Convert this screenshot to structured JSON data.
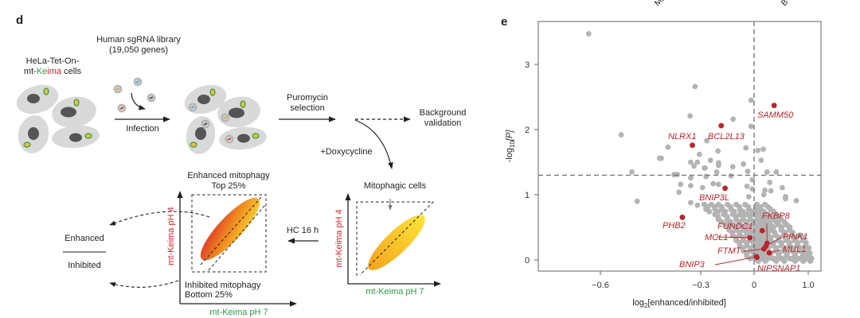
{
  "panel_d": {
    "label": "d",
    "library_title": "Human sgRNA library",
    "library_genes": "(19,050 genes)",
    "cell_line_1": "HeLa-Tet-On-",
    "cell_line_2_prefix": "mt-",
    "cell_line_2_ke": "Ke",
    "cell_line_2_ima": "ima",
    "cell_line_2_suffix": " cells",
    "infection": "Infection",
    "puromycin_1": "Puromycin",
    "puromycin_2": "selection",
    "background_1": "Background",
    "background_2": "validation",
    "doxycycline": "+Doxycycline",
    "mitophagic_cells": "Mitophagic cells",
    "hc": "HC 16 h",
    "enhanced_mitophagy": "Enhanced mitophagy",
    "top": "Top 25%",
    "inhibited_mitophagy": "Inhibited mitophagy",
    "bottom": "Bottom 25%",
    "y_axis": "mt-Keima pH 4",
    "x_axis": "mt-Keima pH 7",
    "ratio_numerator": "Enhanced",
    "ratio_denominator": "Inhibited",
    "colors": {
      "green": "#2e9a47",
      "red": "#d6202b",
      "cell": "#d9d9d9",
      "nucleus": "#555555"
    }
  },
  "top_cut_labels": [
    "Mo",
    "B"
  ],
  "chart_data": {
    "type": "scatter",
    "panel_label": "e",
    "xlabel_prefix": "log",
    "xlabel_sub": "2",
    "xlabel_suffix": "[enhanced/inhibited]",
    "ylabel_prefix": "-log",
    "ylabel_sub": "10",
    "ylabel_suffix": "[P]",
    "x_ticks": [
      {
        "value": -0.6,
        "label": "−0.6"
      },
      {
        "value": -0.3,
        "label": "−0.3"
      },
      {
        "value": 0,
        "label": "0"
      },
      {
        "value": 1.0,
        "label": "1.0"
      }
    ],
    "y_ticks": [
      {
        "value": 0,
        "label": "0"
      },
      {
        "value": 1,
        "label": "1"
      },
      {
        "value": 2,
        "label": "2"
      },
      {
        "value": 3,
        "label": "3"
      }
    ],
    "x_scale_note": "axis is compressed on positive side",
    "ylim": [
      -0.05,
      3.6
    ],
    "threshold_y": 1.3,
    "threshold_x": 0,
    "colors": {
      "background_points": "#b3b3b3",
      "highlight": "#b8252b"
    },
    "highlighted": [
      {
        "gene": "SAMM50",
        "x": 0.37,
        "y": 2.37
      },
      {
        "gene": "BCL2L13",
        "x": -0.185,
        "y": 2.06
      },
      {
        "gene": "NLRX1",
        "x": -0.325,
        "y": 1.76
      },
      {
        "gene": "BNIP3L",
        "x": -0.163,
        "y": 1.1
      },
      {
        "gene": "PHB2",
        "x": -0.355,
        "y": 0.655
      },
      {
        "gene": "FUNDC1",
        "x": 0.15,
        "y": 0.45
      },
      {
        "gene": "MCL1",
        "x": -0.024,
        "y": 0.34
      },
      {
        "gene": "FKBP8",
        "x": 0.24,
        "y": 0.256
      },
      {
        "gene": "PINK1",
        "x": 0.22,
        "y": 0.21
      },
      {
        "gene": "FTMT",
        "x": 0.18,
        "y": 0.17
      },
      {
        "gene": "MUL1",
        "x": 0.28,
        "y": 0.11
      },
      {
        "gene": "BNIP3",
        "x": 0.044,
        "y": 0.05
      },
      {
        "gene": "NIPSNAP1",
        "x": 0.053,
        "y": 0.04
      }
    ],
    "other_points": [
      [
        -0.635,
        3.47
      ],
      [
        -0.317,
        2.66
      ],
      [
        -0.017,
        2.45
      ],
      [
        -0.332,
        2.21
      ],
      [
        -0.118,
        2.16
      ],
      [
        -0.538,
        1.92
      ],
      [
        -0.017,
        2.05
      ],
      [
        -0.266,
        1.83
      ],
      [
        -0.398,
        1.73
      ],
      [
        -0.046,
        1.72
      ],
      [
        0.07,
        1.68
      ],
      [
        0.17,
        1.7
      ],
      [
        -0.203,
        1.67
      ],
      [
        -0.304,
        1.62
      ],
      [
        -0.423,
        1.56
      ],
      [
        -0.418,
        1.56
      ],
      [
        -0.33,
        1.5
      ],
      [
        -0.31,
        1.5
      ],
      [
        -0.32,
        1.44
      ],
      [
        -0.245,
        1.53
      ],
      [
        -0.2,
        1.49
      ],
      [
        -0.2,
        1.45
      ],
      [
        -0.06,
        1.47
      ],
      [
        0.13,
        1.53
      ],
      [
        -0.12,
        1.43
      ],
      [
        -0.28,
        1.41
      ],
      [
        -0.275,
        1.41
      ],
      [
        -0.506,
        1.35
      ],
      [
        -0.21,
        1.35
      ],
      [
        -0.036,
        1.36
      ],
      [
        0.24,
        1.35
      ],
      [
        0.41,
        1.35
      ],
      [
        -0.38,
        1.31
      ],
      [
        -0.37,
        1.31
      ],
      [
        -0.33,
        1.26
      ],
      [
        -0.27,
        1.28
      ],
      [
        -0.13,
        1.29
      ],
      [
        -0.01,
        1.23
      ],
      [
        -0.36,
        1.16
      ],
      [
        -0.33,
        1.14
      ],
      [
        -0.23,
        1.17
      ],
      [
        -0.2,
        1.16
      ],
      [
        0.29,
        1.19
      ],
      [
        -0.29,
        1.11
      ],
      [
        -0.04,
        1.13
      ],
      [
        -0.01,
        1.09
      ],
      [
        0.2,
        1.07
      ],
      [
        0.31,
        1.06
      ],
      [
        0.52,
        1.11
      ],
      [
        -0.365,
        1.04
      ],
      [
        -0.49,
        0.9
      ],
      [
        -0.03,
        0.97
      ],
      [
        0.18,
        1.0
      ],
      [
        0.58,
        0.97
      ],
      [
        0.58,
        0.94
      ],
      [
        0.78,
        0.91
      ],
      [
        -0.33,
        0.88
      ],
      [
        -0.31,
        0.84
      ]
    ],
    "cloud_rows": [
      {
        "y": 0.85,
        "x": [
          -0.28,
          -0.24,
          -0.2,
          -0.15,
          -0.1,
          -0.05,
          0.05,
          0.2
        ]
      },
      {
        "y": 0.78,
        "x": [
          -0.27,
          -0.22,
          -0.18,
          -0.13,
          -0.08,
          -0.03,
          0.03,
          0.12,
          0.3
        ]
      },
      {
        "y": 0.7,
        "x": [
          -0.22,
          -0.17,
          -0.12,
          -0.08,
          -0.04,
          0.02,
          0.1,
          0.25,
          0.4
        ]
      },
      {
        "y": 0.62,
        "x": [
          -0.2,
          -0.15,
          -0.1,
          -0.06,
          -0.02,
          0.05,
          0.12,
          0.22,
          0.35,
          0.5
        ]
      },
      {
        "y": 0.54,
        "x": [
          -0.16,
          -0.12,
          -0.08,
          -0.04,
          0,
          0.08,
          0.18,
          0.3,
          0.45,
          0.6
        ]
      },
      {
        "y": 0.46,
        "x": [
          -0.14,
          -0.1,
          -0.06,
          -0.03,
          0.03,
          0.1,
          0.2,
          0.32,
          0.5,
          0.65
        ]
      },
      {
        "y": 0.38,
        "x": [
          -0.12,
          -0.08,
          -0.04,
          0.02,
          0.08,
          0.15,
          0.25,
          0.4,
          0.55,
          0.7,
          0.85
        ]
      },
      {
        "y": 0.3,
        "x": [
          -0.1,
          -0.06,
          -0.02,
          0.04,
          0.1,
          0.2,
          0.3,
          0.45,
          0.6,
          0.75,
          0.9
        ]
      },
      {
        "y": 0.22,
        "x": [
          -0.08,
          -0.04,
          0,
          0.06,
          0.12,
          0.2,
          0.35,
          0.5,
          0.65,
          0.8,
          0.95
        ]
      },
      {
        "y": 0.14,
        "x": [
          -0.06,
          -0.02,
          0.03,
          0.08,
          0.15,
          0.25,
          0.4,
          0.55,
          0.7,
          0.85,
          0.97
        ]
      },
      {
        "y": 0.06,
        "x": [
          -0.04,
          0,
          0.05,
          0.1,
          0.2,
          0.3,
          0.45,
          0.6,
          0.75,
          0.9,
          1.0
        ]
      },
      {
        "y": 0.02,
        "x": [
          0.02,
          0.15,
          0.35,
          0.5,
          0.7,
          0.85,
          0.98
        ]
      }
    ]
  }
}
